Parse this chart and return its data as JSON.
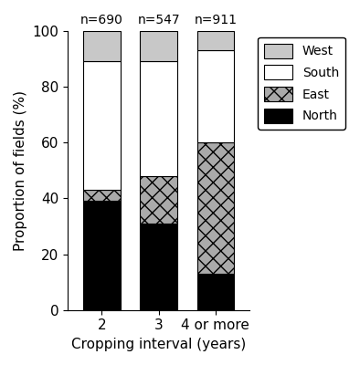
{
  "categories": [
    "2",
    "3",
    "4 or more"
  ],
  "n_labels": [
    "n=690",
    "n=547",
    "n=911"
  ],
  "north": [
    39,
    31,
    13
  ],
  "east": [
    4,
    17,
    47
  ],
  "south": [
    46,
    41,
    33
  ],
  "west": [
    11,
    11,
    7
  ],
  "colors": {
    "North": "#000000",
    "East": "#aaaaaa",
    "South": "#ffffff",
    "West": "#c8c8c8"
  },
  "ylabel": "Proportion of fields (%)",
  "xlabel": "Cropping interval (years)",
  "ylim": [
    0,
    100
  ],
  "bar_width": 0.65,
  "figsize": [
    3.94,
    4.0
  ],
  "dpi": 100
}
